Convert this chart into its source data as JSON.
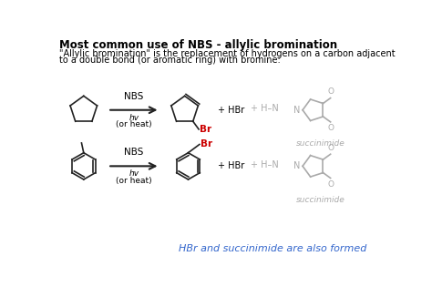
{
  "title": "Most common use of NBS - allylic bromination",
  "description_line1": "\"Allylic bromination\" is the replacement of hydrogens on a carbon adjacent",
  "description_line2": "to a double bond (or aromatic ring) with bromine:",
  "arrow_label_top": "NBS",
  "arrow_label_mid": "hv",
  "arrow_label_bot": "(or heat)",
  "plus_hbr": "+ HBr",
  "footer": "HBr and succinimide are also formed",
  "succinimide_label": "succinimide",
  "bg_color": "#ffffff",
  "title_color": "#000000",
  "text_color": "#000000",
  "gray_color": "#aaaaaa",
  "blue_color": "#3366cc",
  "red_color": "#cc0000",
  "line_color": "#222222",
  "title_fontsize": 8.5,
  "body_fontsize": 7.0,
  "small_fontsize": 6.5
}
